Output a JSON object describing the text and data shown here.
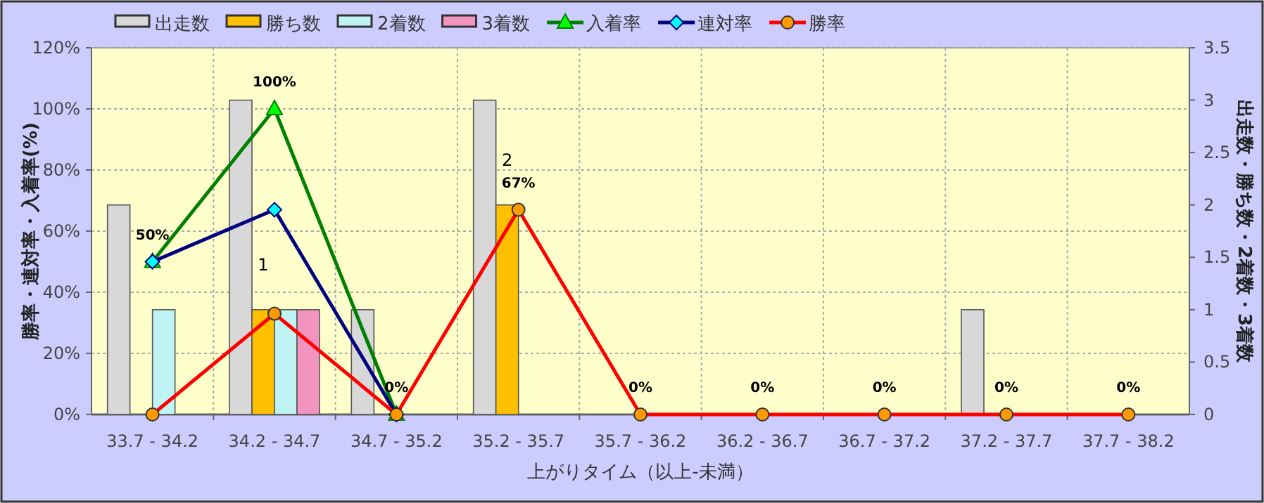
{
  "chart_data": {
    "type": "bar",
    "xlabel": "上がりタイム（以上-未満）",
    "ylabel": "勝率・連対率・入着率(%)",
    "y2label": "出走数・勝ち数・2着数・3着数",
    "categories": [
      "33.7 - 34.2",
      "34.2 - 34.7",
      "34.7 - 35.2",
      "35.2 - 35.7",
      "35.7 - 36.2",
      "36.2 - 36.7",
      "36.7 - 37.2",
      "37.2 - 37.7",
      "37.7 - 38.2"
    ],
    "series": [
      {
        "name": "出走数",
        "axis": "y2",
        "color": "#d8d8d8",
        "values": [
          2,
          3,
          1,
          3,
          0,
          0,
          0,
          1,
          0
        ]
      },
      {
        "name": "勝ち数",
        "axis": "y2",
        "color": "#ffc000",
        "values": [
          0,
          1,
          0,
          2,
          0,
          0,
          0,
          0,
          0
        ],
        "value_labels": [
          null,
          "1",
          null,
          "2",
          null,
          null,
          null,
          null,
          null
        ]
      },
      {
        "name": "2着数",
        "axis": "y2",
        "color": "#c0f4f4",
        "values": [
          1,
          1,
          0,
          0,
          0,
          0,
          0,
          0,
          0
        ]
      },
      {
        "name": "3着数",
        "axis": "y2",
        "color": "#f394c0",
        "values": [
          0,
          1,
          0,
          0,
          0,
          0,
          0,
          0,
          0
        ]
      },
      {
        "name": "入着率",
        "type": "line",
        "color": "#008000",
        "marker": "triangle",
        "values": [
          50,
          100,
          0,
          null,
          null,
          null,
          null,
          null,
          null
        ],
        "value_labels": [
          "50%",
          "100%",
          "0%",
          null,
          null,
          null,
          null,
          null,
          null
        ]
      },
      {
        "name": "連対率",
        "type": "line",
        "color": "#000080",
        "marker": "diamond",
        "values": [
          50,
          67,
          0,
          null,
          null,
          null,
          null,
          null,
          null
        ]
      },
      {
        "name": "勝率",
        "type": "line",
        "color": "#ff0000",
        "marker": "circle",
        "values": [
          0,
          33,
          0,
          67,
          0,
          0,
          0,
          0,
          0
        ],
        "value_labels": [
          null,
          null,
          null,
          "67%",
          "0%",
          "0%",
          "0%",
          "0%",
          "0%"
        ]
      }
    ],
    "ylim": [
      0,
      120
    ],
    "yticks": [
      {
        "value": 0,
        "label": "0%"
      },
      {
        "value": 20,
        "label": "20%"
      },
      {
        "value": 40,
        "label": "40%"
      },
      {
        "value": 60,
        "label": "60%"
      },
      {
        "value": 80,
        "label": "80%"
      },
      {
        "value": 100,
        "label": "100%"
      },
      {
        "value": 120,
        "label": "120%"
      }
    ],
    "y2lim": [
      0,
      3.5
    ],
    "y2ticks": [
      0,
      0.5,
      1,
      1.5,
      2,
      2.5,
      3,
      3.5
    ],
    "grid": true,
    "legend": "top"
  }
}
